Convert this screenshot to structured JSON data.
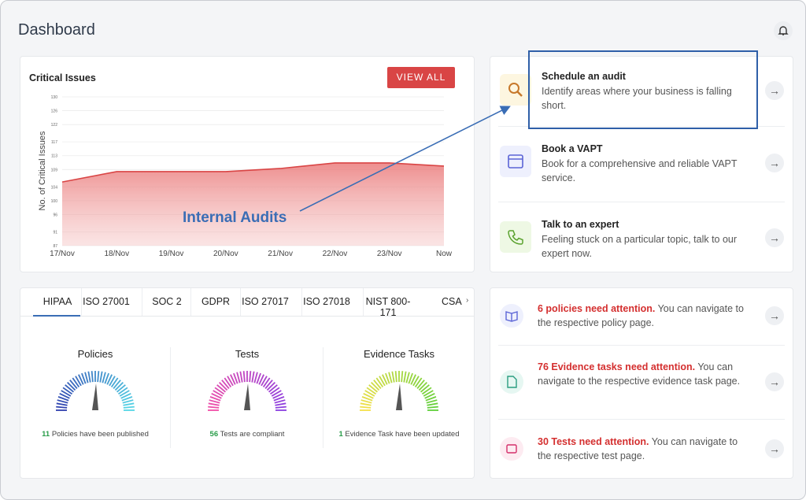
{
  "header": {
    "title": "Dashboard"
  },
  "chart_data": {
    "type": "line",
    "title": "Critical Issues",
    "y_label": "No. of Critical Issues",
    "categories": [
      "17/Nov",
      "18/Nov",
      "19/Nov",
      "20/Nov",
      "21/Nov",
      "22/Nov",
      "23/Nov",
      "Now"
    ],
    "values": [
      105.4,
      108.4,
      108.4,
      108.4,
      109.3,
      110.9,
      110.9,
      110
    ],
    "color": "#d94545",
    "ylim": [
      87,
      130
    ],
    "yticks": [
      87,
      91,
      96,
      100,
      104,
      109,
      113,
      117,
      122,
      126,
      130
    ],
    "grid": true,
    "annotation": "Internal Audits"
  },
  "button": "VIEW ALL",
  "actions": [
    {
      "title": "Schedule an audit",
      "description": "Identify areas where your business is falling short."
    },
    {
      "title": "Book a VAPT",
      "description": "Book for a comprehensive and reliable VAPT service."
    },
    {
      "title": "Talk to an expert",
      "description": "Feeling stuck on a particular topic, talk to our expert now."
    }
  ],
  "tabs": [
    "HIPAA",
    "ISO 27001",
    "SOC 2",
    "GDPR",
    "ISO 27017",
    "ISO 27018",
    "NIST 800-171",
    "CSA"
  ],
  "gauges": [
    {
      "title": "Policies",
      "count": 11,
      "caption": "Policies have been published"
    },
    {
      "title": "Tests",
      "count": 56,
      "caption": "Tests are compliant"
    },
    {
      "title": "Evidence Tasks",
      "count": 1,
      "caption": "Evidence Task have been updated"
    }
  ],
  "alerts": [
    {
      "highlight": "6 policies need attention.",
      "text": "You can navigate to the respective policy page."
    },
    {
      "highlight": "76 Evidence tasks need attention.",
      "text": "You can navigate to the respective evidence task page."
    },
    {
      "highlight": "30 Tests need attention.",
      "text": "You can navigate to the respective test page."
    }
  ]
}
